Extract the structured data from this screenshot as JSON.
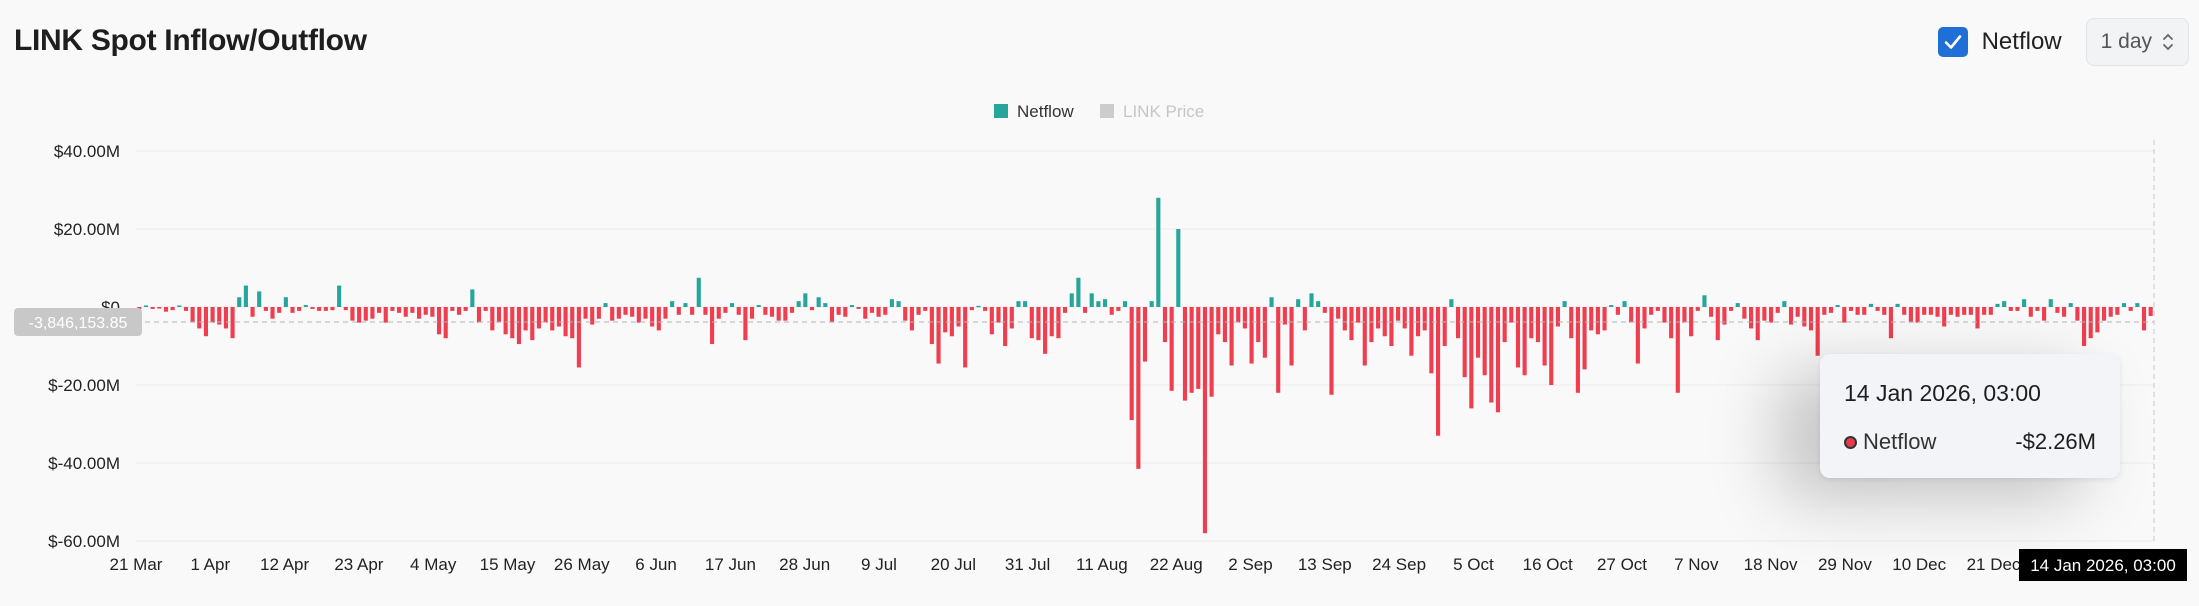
{
  "header": {
    "title": "LINK Spot Inflow/Outflow",
    "checkbox_label": "Netflow",
    "checkbox_checked": true,
    "interval": "1 day"
  },
  "colors": {
    "positive": "#26a69a",
    "negative": "#ef3e4f",
    "accent": "#1f6fd6"
  },
  "tooltip": {
    "date": "14 Jan 2026, 03:00",
    "series": "Netflow",
    "value": "-$2.26M"
  },
  "chart_data": {
    "type": "bar",
    "legend": [
      {
        "name": "Netflow",
        "color": "#26a69a",
        "active": true
      },
      {
        "name": "LINK Price",
        "color": "#cccccc",
        "active": false
      }
    ],
    "legend_position": "top-center",
    "ylim": [
      -60000000,
      45000000
    ],
    "yticks": [
      "$40.00M",
      "$20.00M",
      "$0",
      "$-20.00M",
      "$-40.00M",
      "$-60.00M"
    ],
    "ytick_values": [
      40000000,
      20000000,
      0,
      -20000000,
      -40000000,
      -60000000
    ],
    "xticks": [
      "21 Mar",
      "1 Apr",
      "12 Apr",
      "23 Apr",
      "4 May",
      "15 May",
      "26 May",
      "6 Jun",
      "17 Jun",
      "28 Jun",
      "9 Jul",
      "20 Jul",
      "31 Jul",
      "11 Aug",
      "22 Aug",
      "2 Sep",
      "13 Sep",
      "24 Sep",
      "5 Oct",
      "16 Oct",
      "27 Oct",
      "7 Nov",
      "18 Nov",
      "29 Nov",
      "10 Dec",
      "21 Dec"
    ],
    "crosshair_y_value": -3846153.85,
    "crosshair_y_label": "-3,846,153.85",
    "crosshair_x_label": "14 Jan 2026, 03:00",
    "grid": true,
    "series": [
      {
        "name": "Netflow",
        "unit": "$M"
      }
    ],
    "values": [
      -0.5,
      0.4,
      -0.5,
      -0.4,
      -1.2,
      -0.8,
      0.4,
      -1.0,
      -4.0,
      -5.5,
      -7.5,
      -4.0,
      -4.5,
      -5.5,
      -8.0,
      2.5,
      5.5,
      -2.5,
      4.0,
      -1.0,
      -3.0,
      -1.5,
      2.5,
      -1.5,
      -1.0,
      0.5,
      -0.5,
      -1.0,
      -1.0,
      -0.8,
      5.5,
      -0.8,
      -3.5,
      -4.0,
      -3.5,
      -3.0,
      -1.5,
      -4.0,
      -1.0,
      -1.5,
      -2.5,
      -1.5,
      -3.0,
      -2.0,
      -2.5,
      -7.0,
      -8.0,
      -1.0,
      -2.0,
      -1.0,
      4.5,
      -4.0,
      -1.0,
      -6.0,
      -4.0,
      -7.0,
      -8.0,
      -9.5,
      -6.0,
      -8.5,
      -5.5,
      -4.0,
      -6.0,
      -5.0,
      -7.5,
      -8.0,
      -15.5,
      -3.0,
      -4.5,
      -3.0,
      1.0,
      -3.5,
      -3.0,
      -2.0,
      -2.5,
      -4.0,
      -3.0,
      -5.0,
      -6.0,
      -3.0,
      1.5,
      -2.0,
      1.0,
      -2.0,
      7.5,
      -2.0,
      -9.5,
      -3.0,
      -1.5,
      1.0,
      -2.0,
      -8.5,
      -3.0,
      0.5,
      -2.0,
      -2.5,
      -3.5,
      -3.5,
      -1.5,
      1.5,
      3.5,
      -0.8,
      2.5,
      1.0,
      -4.0,
      -2.0,
      -2.5,
      0.5,
      -0.5,
      -3.0,
      -1.5,
      -2.5,
      -2.0,
      2.0,
      1.5,
      -3.5,
      -6.0,
      -2.0,
      -1.0,
      -9.5,
      -14.5,
      -6.5,
      -7.5,
      -5.0,
      -15.5,
      -0.8,
      0.3,
      -1.0,
      -7.0,
      -4.0,
      -10.0,
      -5.5,
      1.5,
      1.5,
      -8.0,
      -8.5,
      -12.0,
      -7.5,
      -8.0,
      -1.5,
      3.5,
      7.5,
      -1.5,
      3.5,
      1.5,
      2.0,
      -2.0,
      -1.0,
      1.5,
      -29.0,
      -41.5,
      -14.0,
      1.5,
      28.0,
      -9.0,
      -21.5,
      20.0,
      -24.0,
      -22.0,
      -21.0,
      -58.0,
      -23.0,
      -7.0,
      -9.0,
      -15.0,
      -4.0,
      -5.5,
      -14.5,
      -9.0,
      -13.0,
      2.5,
      -22.0,
      -4.5,
      -15.0,
      2.0,
      -6.0,
      3.5,
      1.5,
      -1.5,
      -22.5,
      -3.0,
      -6.0,
      -8.5,
      -4.0,
      -15.0,
      -9.0,
      -5.5,
      -7.5,
      -10.0,
      -3.5,
      -5.5,
      -12.5,
      -7.5,
      -6.0,
      -17.0,
      -33.0,
      -10.0,
      2.0,
      -8.0,
      -18.0,
      -26.0,
      -13.0,
      -17.5,
      -24.5,
      -27.0,
      -9.0,
      -4.0,
      -15.5,
      -17.5,
      -8.0,
      -9.0,
      -15.0,
      -20.0,
      -5.0,
      1.5,
      -8.0,
      -22.0,
      -16.0,
      -6.0,
      -7.0,
      -6.0,
      0.5,
      -2.0,
      1.5,
      -4.0,
      -14.5,
      -5.5,
      -2.0,
      -1.0,
      -4.0,
      -8.0,
      -22.0,
      -4.0,
      -7.5,
      -1.0,
      3.0,
      -2.5,
      -8.5,
      -4.5,
      -1.0,
      1.0,
      -3.0,
      -5.5,
      -8.5,
      -3.5,
      -4.0,
      -1.5,
      1.5,
      -4.5,
      -2.5,
      -5.0,
      -6.0,
      -12.5,
      -2.0,
      -1.5,
      0.5,
      -4.0,
      -1.0,
      -2.0,
      -2.0,
      0.8,
      -1.0,
      -2.0,
      -8.0,
      0.8,
      -2.0,
      -4.0,
      -4.0,
      -2.0,
      -2.0,
      -2.5,
      -5.0,
      -2.0,
      -2.5,
      -2.0,
      -2.0,
      -5.5,
      -2.0,
      -2.0,
      0.8,
      1.5,
      -1.0,
      -1.0,
      2.0,
      -2.5,
      -1.0,
      -3.5,
      2.0,
      -1.5,
      -2.5,
      1.0,
      -3.5,
      -10.0,
      -8.0,
      -6.5,
      -3.5,
      -2.5,
      -2.0,
      1.0,
      -1.0,
      1.0,
      -6.0,
      -2.3
    ]
  }
}
